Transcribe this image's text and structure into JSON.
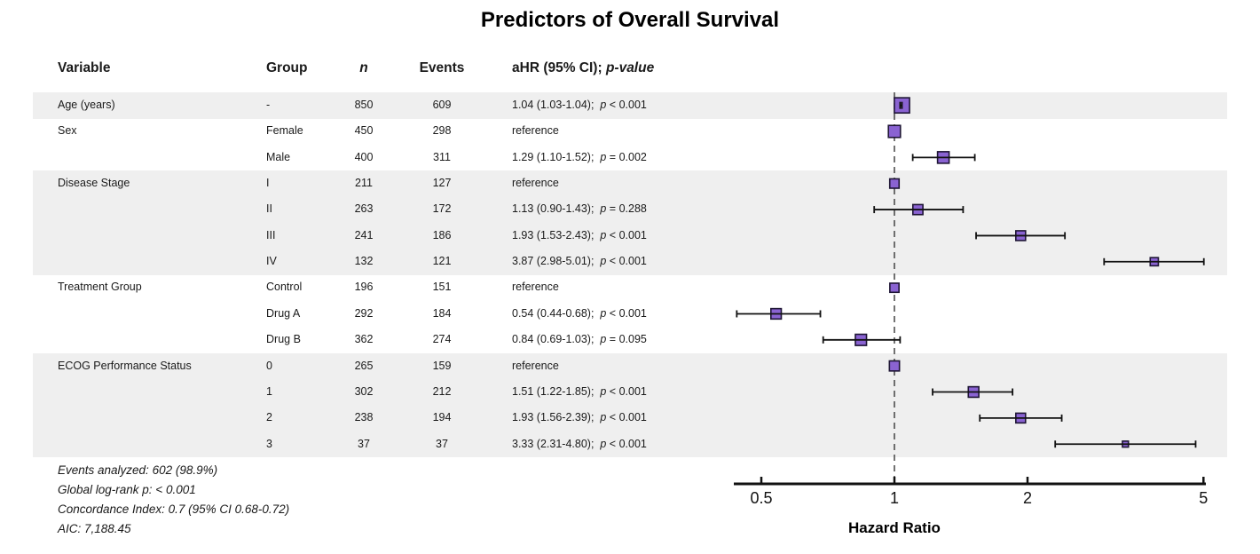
{
  "title": "Predictors of Overall Survival",
  "columns": {
    "variable": "Variable",
    "group": "Group",
    "n": "n",
    "events": "Events",
    "ahr_prefix": "aHR (95% CI); ",
    "ahr_p": "p-value"
  },
  "footer": {
    "lines": [
      "Events analyzed: 602 (98.9%)",
      "Global log-rank p: < 0.001",
      "Concordance Index: 0.7 (95% CI 0.68-0.72)",
      "AIC: 7,188.45"
    ]
  },
  "colors": {
    "marker_fill": "#8A63D2",
    "marker_stroke": "#1E1535",
    "ci_line": "#111111",
    "ref_line": "#444444",
    "axis": "#111111",
    "band": "#EFEFEF",
    "text": "#1A1A1A"
  },
  "chart_data": {
    "type": "forest",
    "title": "Predictors of Overall Survival",
    "xlabel": "Hazard Ratio",
    "x_scale": "log",
    "x_ticks": [
      0.5,
      1,
      2,
      5
    ],
    "x_range": [
      0.43,
      5.05
    ],
    "ref_value": 1,
    "rows": [
      {
        "variable": "Age (years)",
        "group": "-",
        "n": 850,
        "events": 609,
        "ahr": "1.04 (1.03-1.04);",
        "p": "p < 0.001",
        "hr": 1.04,
        "lo": 1.03,
        "hi": 1.04,
        "reference": false,
        "shaded": true
      },
      {
        "variable": "Sex",
        "group": "Female",
        "n": 450,
        "events": 298,
        "ahr": "reference",
        "p": "",
        "hr": 1.0,
        "lo": null,
        "hi": null,
        "reference": true,
        "shaded": false
      },
      {
        "variable": "",
        "group": "Male",
        "n": 400,
        "events": 311,
        "ahr": "1.29 (1.10-1.52);",
        "p": "p = 0.002",
        "hr": 1.29,
        "lo": 1.1,
        "hi": 1.52,
        "reference": false,
        "shaded": false
      },
      {
        "variable": "Disease Stage",
        "group": "I",
        "n": 211,
        "events": 127,
        "ahr": "reference",
        "p": "",
        "hr": 1.0,
        "lo": null,
        "hi": null,
        "reference": true,
        "shaded": true
      },
      {
        "variable": "",
        "group": "II",
        "n": 263,
        "events": 172,
        "ahr": "1.13 (0.90-1.43);",
        "p": "p = 0.288",
        "hr": 1.13,
        "lo": 0.9,
        "hi": 1.43,
        "reference": false,
        "shaded": true
      },
      {
        "variable": "",
        "group": "III",
        "n": 241,
        "events": 186,
        "ahr": "1.93 (1.53-2.43);",
        "p": "p < 0.001",
        "hr": 1.93,
        "lo": 1.53,
        "hi": 2.43,
        "reference": false,
        "shaded": true
      },
      {
        "variable": "",
        "group": "IV",
        "n": 132,
        "events": 121,
        "ahr": "3.87 (2.98-5.01);",
        "p": "p < 0.001",
        "hr": 3.87,
        "lo": 2.98,
        "hi": 5.01,
        "reference": false,
        "shaded": true
      },
      {
        "variable": "Treatment Group",
        "group": "Control",
        "n": 196,
        "events": 151,
        "ahr": "reference",
        "p": "",
        "hr": 1.0,
        "lo": null,
        "hi": null,
        "reference": true,
        "shaded": false
      },
      {
        "variable": "",
        "group": "Drug A",
        "n": 292,
        "events": 184,
        "ahr": "0.54 (0.44-0.68);",
        "p": "p < 0.001",
        "hr": 0.54,
        "lo": 0.44,
        "hi": 0.68,
        "reference": false,
        "shaded": false
      },
      {
        "variable": "",
        "group": "Drug B",
        "n": 362,
        "events": 274,
        "ahr": "0.84 (0.69-1.03);",
        "p": "p = 0.095",
        "hr": 0.84,
        "lo": 0.69,
        "hi": 1.03,
        "reference": false,
        "shaded": false
      },
      {
        "variable": "ECOG Performance Status",
        "group": "0",
        "n": 265,
        "events": 159,
        "ahr": "reference",
        "p": "",
        "hr": 1.0,
        "lo": null,
        "hi": null,
        "reference": true,
        "shaded": true
      },
      {
        "variable": "",
        "group": "1",
        "n": 302,
        "events": 212,
        "ahr": "1.51 (1.22-1.85);",
        "p": "p < 0.001",
        "hr": 1.51,
        "lo": 1.22,
        "hi": 1.85,
        "reference": false,
        "shaded": true
      },
      {
        "variable": "",
        "group": "2",
        "n": 238,
        "events": 194,
        "ahr": "1.93 (1.56-2.39);",
        "p": "p < 0.001",
        "hr": 1.93,
        "lo": 1.56,
        "hi": 2.39,
        "reference": false,
        "shaded": true
      },
      {
        "variable": "",
        "group": "3",
        "n": 37,
        "events": 37,
        "ahr": "3.33 (2.31-4.80);",
        "p": "p < 0.001",
        "hr": 3.33,
        "lo": 2.31,
        "hi": 4.8,
        "reference": false,
        "shaded": true
      }
    ]
  }
}
